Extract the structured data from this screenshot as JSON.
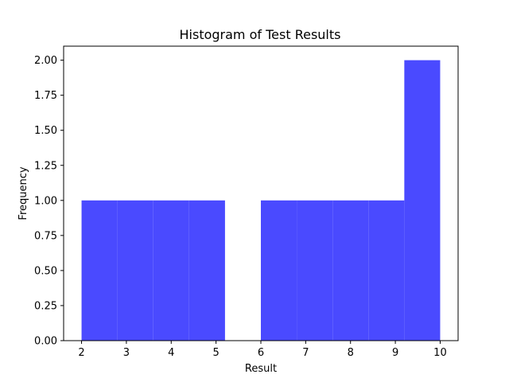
{
  "chart_data": {
    "type": "bar",
    "title": "Histogram of Test Results",
    "xlabel": "Result",
    "ylabel": "Frequency",
    "xlim": [
      1.6,
      10.4
    ],
    "ylim": [
      0,
      2.1
    ],
    "bins": [
      {
        "start": 2.0,
        "end": 2.8,
        "count": 1
      },
      {
        "start": 2.8,
        "end": 3.6,
        "count": 1
      },
      {
        "start": 3.6,
        "end": 4.4,
        "count": 1
      },
      {
        "start": 4.4,
        "end": 5.2,
        "count": 1
      },
      {
        "start": 5.2,
        "end": 6.0,
        "count": 0
      },
      {
        "start": 6.0,
        "end": 6.8,
        "count": 1
      },
      {
        "start": 6.8,
        "end": 7.6,
        "count": 1
      },
      {
        "start": 7.6,
        "end": 8.4,
        "count": 1
      },
      {
        "start": 8.4,
        "end": 9.2,
        "count": 1
      },
      {
        "start": 9.2,
        "end": 10.0,
        "count": 2
      }
    ],
    "bar_color": "#4a4aff",
    "x_ticks": [
      2,
      3,
      4,
      5,
      6,
      7,
      8,
      9,
      10
    ],
    "x_tick_labels": [
      "2",
      "3",
      "4",
      "5",
      "6",
      "7",
      "8",
      "9",
      "10"
    ],
    "y_ticks": [
      0,
      0.25,
      0.5,
      0.75,
      1.0,
      1.25,
      1.5,
      1.75,
      2.0
    ],
    "y_tick_labels": [
      "0.00",
      "0.25",
      "0.50",
      "0.75",
      "1.00",
      "1.25",
      "1.50",
      "1.75",
      "2.00"
    ],
    "grid": false,
    "legend": "none"
  }
}
